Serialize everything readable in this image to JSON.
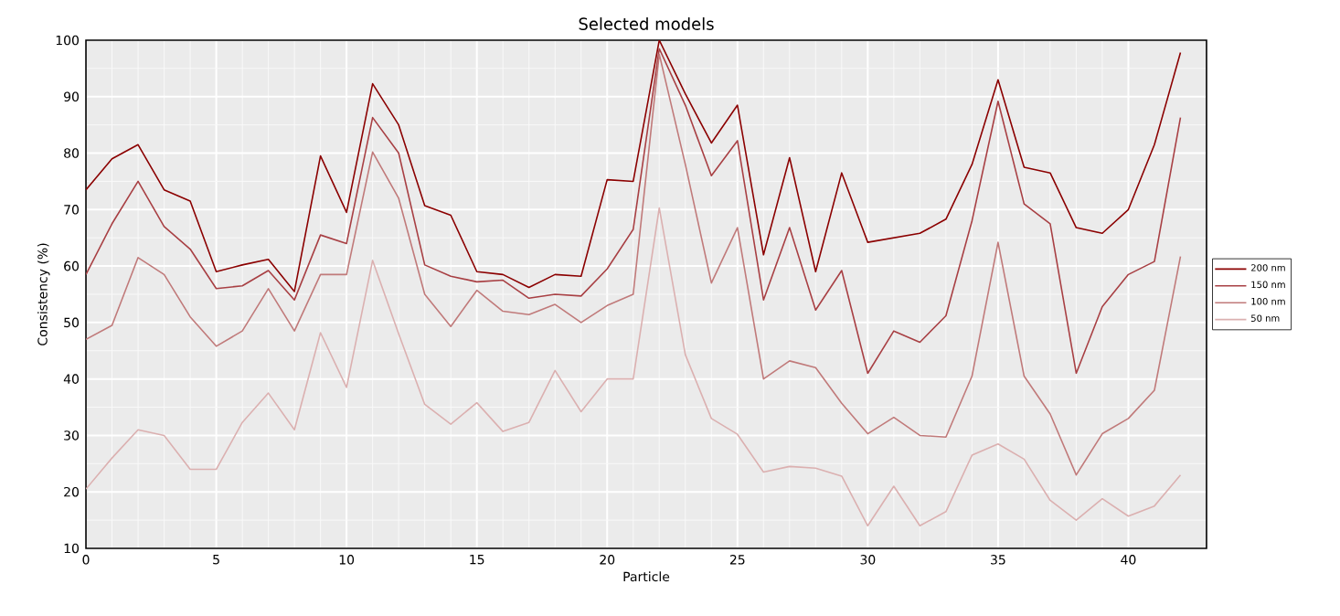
{
  "chart_data": {
    "type": "line",
    "title": "Selected models",
    "xlabel": "Particle",
    "ylabel": "Consistency (%)",
    "x": [
      0,
      1,
      2,
      3,
      4,
      5,
      6,
      7,
      8,
      9,
      10,
      11,
      12,
      13,
      14,
      15,
      16,
      17,
      18,
      19,
      20,
      21,
      22,
      23,
      24,
      25,
      26,
      27,
      28,
      29,
      30,
      31,
      32,
      33,
      34,
      35,
      36,
      37,
      38,
      39,
      40,
      41,
      42
    ],
    "series": [
      {
        "name": "200 nm",
        "color": "#8b0000",
        "values": [
          73.5,
          79,
          81.5,
          73.5,
          71.5,
          59,
          60.2,
          61.2,
          55.5,
          79.5,
          69.5,
          92.3,
          85,
          70.7,
          69,
          59,
          58.5,
          56.2,
          58.5,
          58.2,
          75.3,
          75,
          100,
          90.5,
          81.8,
          88.5,
          62,
          79.2,
          59,
          76.5,
          64.2,
          65,
          65.8,
          68.3,
          78,
          93,
          77.5,
          76.5,
          66.8,
          65.8,
          70,
          81.5,
          97.8
        ]
      },
      {
        "name": "150 nm",
        "color": "#a84044",
        "values": [
          58.5,
          67.5,
          75,
          67,
          63,
          56,
          56.5,
          59.2,
          54,
          65.5,
          64,
          86.3,
          80,
          60.2,
          58.2,
          57.2,
          57.5,
          54.3,
          55,
          54.7,
          59.5,
          66.5,
          98.5,
          88.5,
          76,
          82.2,
          54,
          66.8,
          52.2,
          59.2,
          41,
          48.5,
          46.5,
          51.2,
          68,
          89.2,
          71,
          67.5,
          41,
          52.8,
          58.5,
          60.8,
          86.3
        ]
      },
      {
        "name": "100 nm",
        "color": "#c07a7a",
        "values": [
          47,
          49.5,
          61.5,
          58.5,
          51,
          45.8,
          48.5,
          56,
          48.5,
          58.5,
          58.5,
          80.2,
          72,
          55,
          49.3,
          55.7,
          52,
          51.4,
          53.2,
          50,
          53,
          55,
          97.5,
          78,
          57,
          66.8,
          40,
          43.2,
          42,
          35.7,
          30.3,
          33.2,
          30,
          29.7,
          40.5,
          64.2,
          40.5,
          33.8,
          23,
          30.3,
          33,
          38,
          61.7
        ]
      },
      {
        "name": "50 nm",
        "color": "#dbb0b0",
        "values": [
          20.5,
          26,
          31,
          30,
          24,
          24,
          32.3,
          37.5,
          31,
          48.2,
          38.5,
          61,
          48,
          35.5,
          32,
          35.8,
          30.7,
          32.3,
          41.5,
          34.2,
          40,
          40,
          70.3,
          44.3,
          33,
          30.2,
          23.5,
          24.5,
          24.2,
          22.8,
          14,
          21,
          14,
          16.5,
          26.5,
          28.5,
          25.8,
          18.5,
          15,
          18.8,
          15.7,
          17.5,
          23
        ]
      }
    ],
    "xlim": [
      0,
      43
    ],
    "ylim": [
      10,
      100
    ],
    "xticks": [
      0,
      5,
      10,
      15,
      20,
      25,
      30,
      35,
      40
    ],
    "yticks": [
      10,
      20,
      30,
      40,
      50,
      60,
      70,
      80,
      90,
      100
    ],
    "grid": true,
    "legend": "right",
    "marker": "none",
    "line_style": "solid"
  }
}
